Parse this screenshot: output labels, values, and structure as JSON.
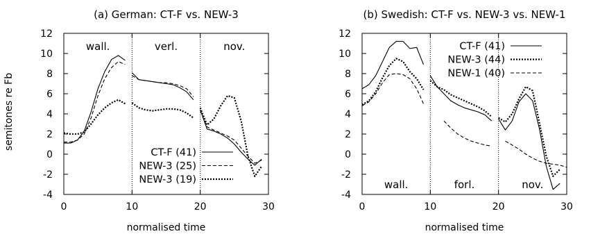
{
  "figure": {
    "ylabel": "semitones re Fb"
  },
  "chart_data": [
    {
      "type": "line",
      "title": "(a) German: CT-F vs. NEW-3",
      "xlabel": "normalised time",
      "ylabel": "semitones re Fb",
      "xlim": [
        0,
        30
      ],
      "ylim": [
        -4,
        12
      ],
      "xticks": [
        "0",
        "10",
        "20",
        "30"
      ],
      "yticks": [
        "-4",
        "-2",
        "0",
        "2",
        "4",
        "6",
        "8",
        "10",
        "12"
      ],
      "regions": [
        "wall.",
        "verl.",
        "nov."
      ],
      "region_dividers": [
        10,
        20
      ],
      "legend": "bottom-left",
      "series": [
        {
          "name": "CT-F (41)",
          "style": "solid",
          "segments": [
            [
              [
                0,
                1.1
              ],
              [
                1,
                1.1
              ],
              [
                2,
                1.4
              ],
              [
                3,
                2.3
              ],
              [
                4,
                4.2
              ],
              [
                5,
                6.5
              ],
              [
                6,
                8.2
              ],
              [
                7,
                9.4
              ],
              [
                8,
                9.8
              ],
              [
                9,
                9.3
              ]
            ],
            [
              [
                10,
                8.1
              ],
              [
                11,
                7.4
              ],
              [
                12,
                7.3
              ],
              [
                13,
                7.2
              ],
              [
                14,
                7.1
              ],
              [
                15,
                7.0
              ],
              [
                16,
                6.9
              ],
              [
                17,
                6.6
              ],
              [
                18,
                6.2
              ],
              [
                19,
                5.4
              ]
            ],
            [
              [
                20,
                4.4
              ],
              [
                21,
                2.5
              ],
              [
                22,
                2.3
              ],
              [
                23,
                2.0
              ],
              [
                24,
                1.6
              ],
              [
                25,
                1.0
              ],
              [
                26,
                0.2
              ],
              [
                27,
                -0.5
              ],
              [
                28,
                -1.1
              ],
              [
                29,
                -0.5
              ]
            ]
          ]
        },
        {
          "name": "NEW-3 (25)",
          "style": "dashed",
          "segments": [
            [
              [
                0,
                1.2
              ],
              [
                1,
                1.2
              ],
              [
                2,
                1.4
              ],
              [
                3,
                2.0
              ],
              [
                4,
                3.6
              ],
              [
                5,
                5.8
              ],
              [
                6,
                7.5
              ],
              [
                7,
                8.6
              ],
              [
                8,
                9.2
              ],
              [
                9,
                8.9
              ]
            ],
            [
              [
                10,
                7.8
              ],
              [
                11,
                7.4
              ],
              [
                12,
                7.3
              ],
              [
                13,
                7.2
              ],
              [
                14,
                7.1
              ],
              [
                15,
                7.1
              ],
              [
                16,
                7.0
              ],
              [
                17,
                6.8
              ],
              [
                18,
                6.5
              ],
              [
                19,
                5.7
              ]
            ],
            [
              [
                20,
                4.3
              ],
              [
                21,
                2.7
              ],
              [
                22,
                2.4
              ],
              [
                23,
                2.1
              ],
              [
                24,
                1.8
              ],
              [
                25,
                1.4
              ],
              [
                26,
                0.6
              ],
              [
                27,
                -0.2
              ],
              [
                28,
                -0.9
              ],
              [
                29,
                -0.6
              ]
            ]
          ]
        },
        {
          "name": "NEW-3 (19)",
          "style": "dotted",
          "segments": [
            [
              [
                0,
                2.1
              ],
              [
                1,
                2.0
              ],
              [
                2,
                2.0
              ],
              [
                3,
                2.2
              ],
              [
                4,
                3.0
              ],
              [
                5,
                3.9
              ],
              [
                6,
                4.6
              ],
              [
                7,
                5.1
              ],
              [
                8,
                5.4
              ],
              [
                9,
                5.0
              ]
            ],
            [
              [
                10,
                5.1
              ],
              [
                11,
                4.6
              ],
              [
                12,
                4.4
              ],
              [
                13,
                4.3
              ],
              [
                14,
                4.4
              ],
              [
                15,
                4.5
              ],
              [
                16,
                4.5
              ],
              [
                17,
                4.4
              ],
              [
                18,
                4.1
              ],
              [
                19,
                3.6
              ]
            ],
            [
              [
                20,
                4.6
              ],
              [
                21,
                2.9
              ],
              [
                22,
                3.5
              ],
              [
                23,
                4.8
              ],
              [
                24,
                5.8
              ],
              [
                25,
                5.6
              ],
              [
                26,
                3.3
              ],
              [
                27,
                -0.2
              ],
              [
                28,
                -2.2
              ],
              [
                29,
                -1.2
              ]
            ]
          ]
        }
      ]
    },
    {
      "type": "line",
      "title": "(b) Swedish: CT-F vs. NEW-3 vs. NEW-1",
      "xlabel": "normalised time",
      "ylabel": "",
      "xlim": [
        0,
        30
      ],
      "ylim": [
        -4,
        12
      ],
      "xticks": [
        "0",
        "10",
        "20",
        "30"
      ],
      "yticks": [
        "-4",
        "-2",
        "0",
        "2",
        "4",
        "6",
        "8",
        "10",
        "12"
      ],
      "regions": [
        "wall.",
        "forl.",
        "nov."
      ],
      "region_dividers": [
        10,
        20
      ],
      "legend": "top-right",
      "series": [
        {
          "name": "CT-F (41)",
          "style": "solid",
          "segments": [
            [
              [
                0,
                6.5
              ],
              [
                1,
                6.9
              ],
              [
                2,
                7.8
              ],
              [
                3,
                9.2
              ],
              [
                4,
                10.6
              ],
              [
                5,
                11.2
              ],
              [
                6,
                11.2
              ],
              [
                7,
                10.5
              ],
              [
                8,
                10.6
              ],
              [
                9,
                8.9
              ]
            ],
            [
              [
                10,
                7.8
              ],
              [
                11,
                6.7
              ],
              [
                12,
                6.0
              ],
              [
                13,
                5.3
              ],
              [
                14,
                4.9
              ],
              [
                15,
                4.6
              ],
              [
                16,
                4.4
              ],
              [
                17,
                4.2
              ],
              [
                18,
                3.9
              ],
              [
                19,
                3.3
              ]
            ],
            [
              [
                20,
                3.5
              ],
              [
                21,
                2.4
              ],
              [
                22,
                3.3
              ],
              [
                23,
                5.2
              ],
              [
                24,
                6.0
              ],
              [
                25,
                5.3
              ],
              [
                26,
                2.5
              ],
              [
                27,
                -1.2
              ],
              [
                28,
                -3.5
              ],
              [
                29,
                -2.9
              ]
            ]
          ]
        },
        {
          "name": "NEW-3 (44)",
          "style": "dotted",
          "segments": [
            [
              [
                0,
                4.9
              ],
              [
                1,
                5.3
              ],
              [
                2,
                6.2
              ],
              [
                3,
                7.6
              ],
              [
                4,
                8.8
              ],
              [
                5,
                9.5
              ],
              [
                6,
                9.2
              ],
              [
                7,
                8.2
              ],
              [
                8,
                7.5
              ],
              [
                9,
                6.4
              ]
            ],
            [
              [
                10,
                7.3
              ],
              [
                11,
                6.7
              ],
              [
                12,
                6.4
              ],
              [
                13,
                5.9
              ],
              [
                14,
                5.6
              ],
              [
                15,
                5.3
              ],
              [
                16,
                5.0
              ],
              [
                17,
                4.7
              ],
              [
                18,
                4.3
              ],
              [
                19,
                3.7
              ]
            ],
            [
              [
                20,
                3.6
              ],
              [
                21,
                3.2
              ],
              [
                22,
                4.0
              ],
              [
                23,
                5.5
              ],
              [
                24,
                6.7
              ],
              [
                25,
                6.3
              ],
              [
                26,
                3.1
              ],
              [
                27,
                -0.2
              ],
              [
                28,
                -2.2
              ],
              [
                29,
                -1.5
              ]
            ]
          ]
        },
        {
          "name": "NEW-1 (40)",
          "style": "dashed",
          "segments": [
            [
              [
                0,
                4.8
              ],
              [
                1,
                5.2
              ],
              [
                2,
                6.0
              ],
              [
                3,
                7.1
              ],
              [
                4,
                7.9
              ],
              [
                5,
                8.0
              ],
              [
                6,
                7.9
              ],
              [
                7,
                7.5
              ],
              [
                8,
                6.5
              ],
              [
                9,
                5.0
              ]
            ],
            [
              [
                12,
                3.3
              ],
              [
                13,
                2.6
              ],
              [
                14,
                2.0
              ],
              [
                15,
                1.6
              ],
              [
                16,
                1.3
              ],
              [
                17,
                1.1
              ],
              [
                18,
                0.9
              ],
              [
                19,
                0.8
              ]
            ],
            [
              [
                21,
                1.3
              ],
              [
                22,
                0.9
              ],
              [
                23,
                0.5
              ],
              [
                24,
                0.0
              ],
              [
                25,
                -0.4
              ],
              [
                26,
                -0.7
              ],
              [
                27,
                -0.9
              ],
              [
                28,
                -1.0
              ],
              [
                29,
                -1.1
              ],
              [
                30,
                -1.3
              ]
            ]
          ]
        }
      ]
    }
  ]
}
